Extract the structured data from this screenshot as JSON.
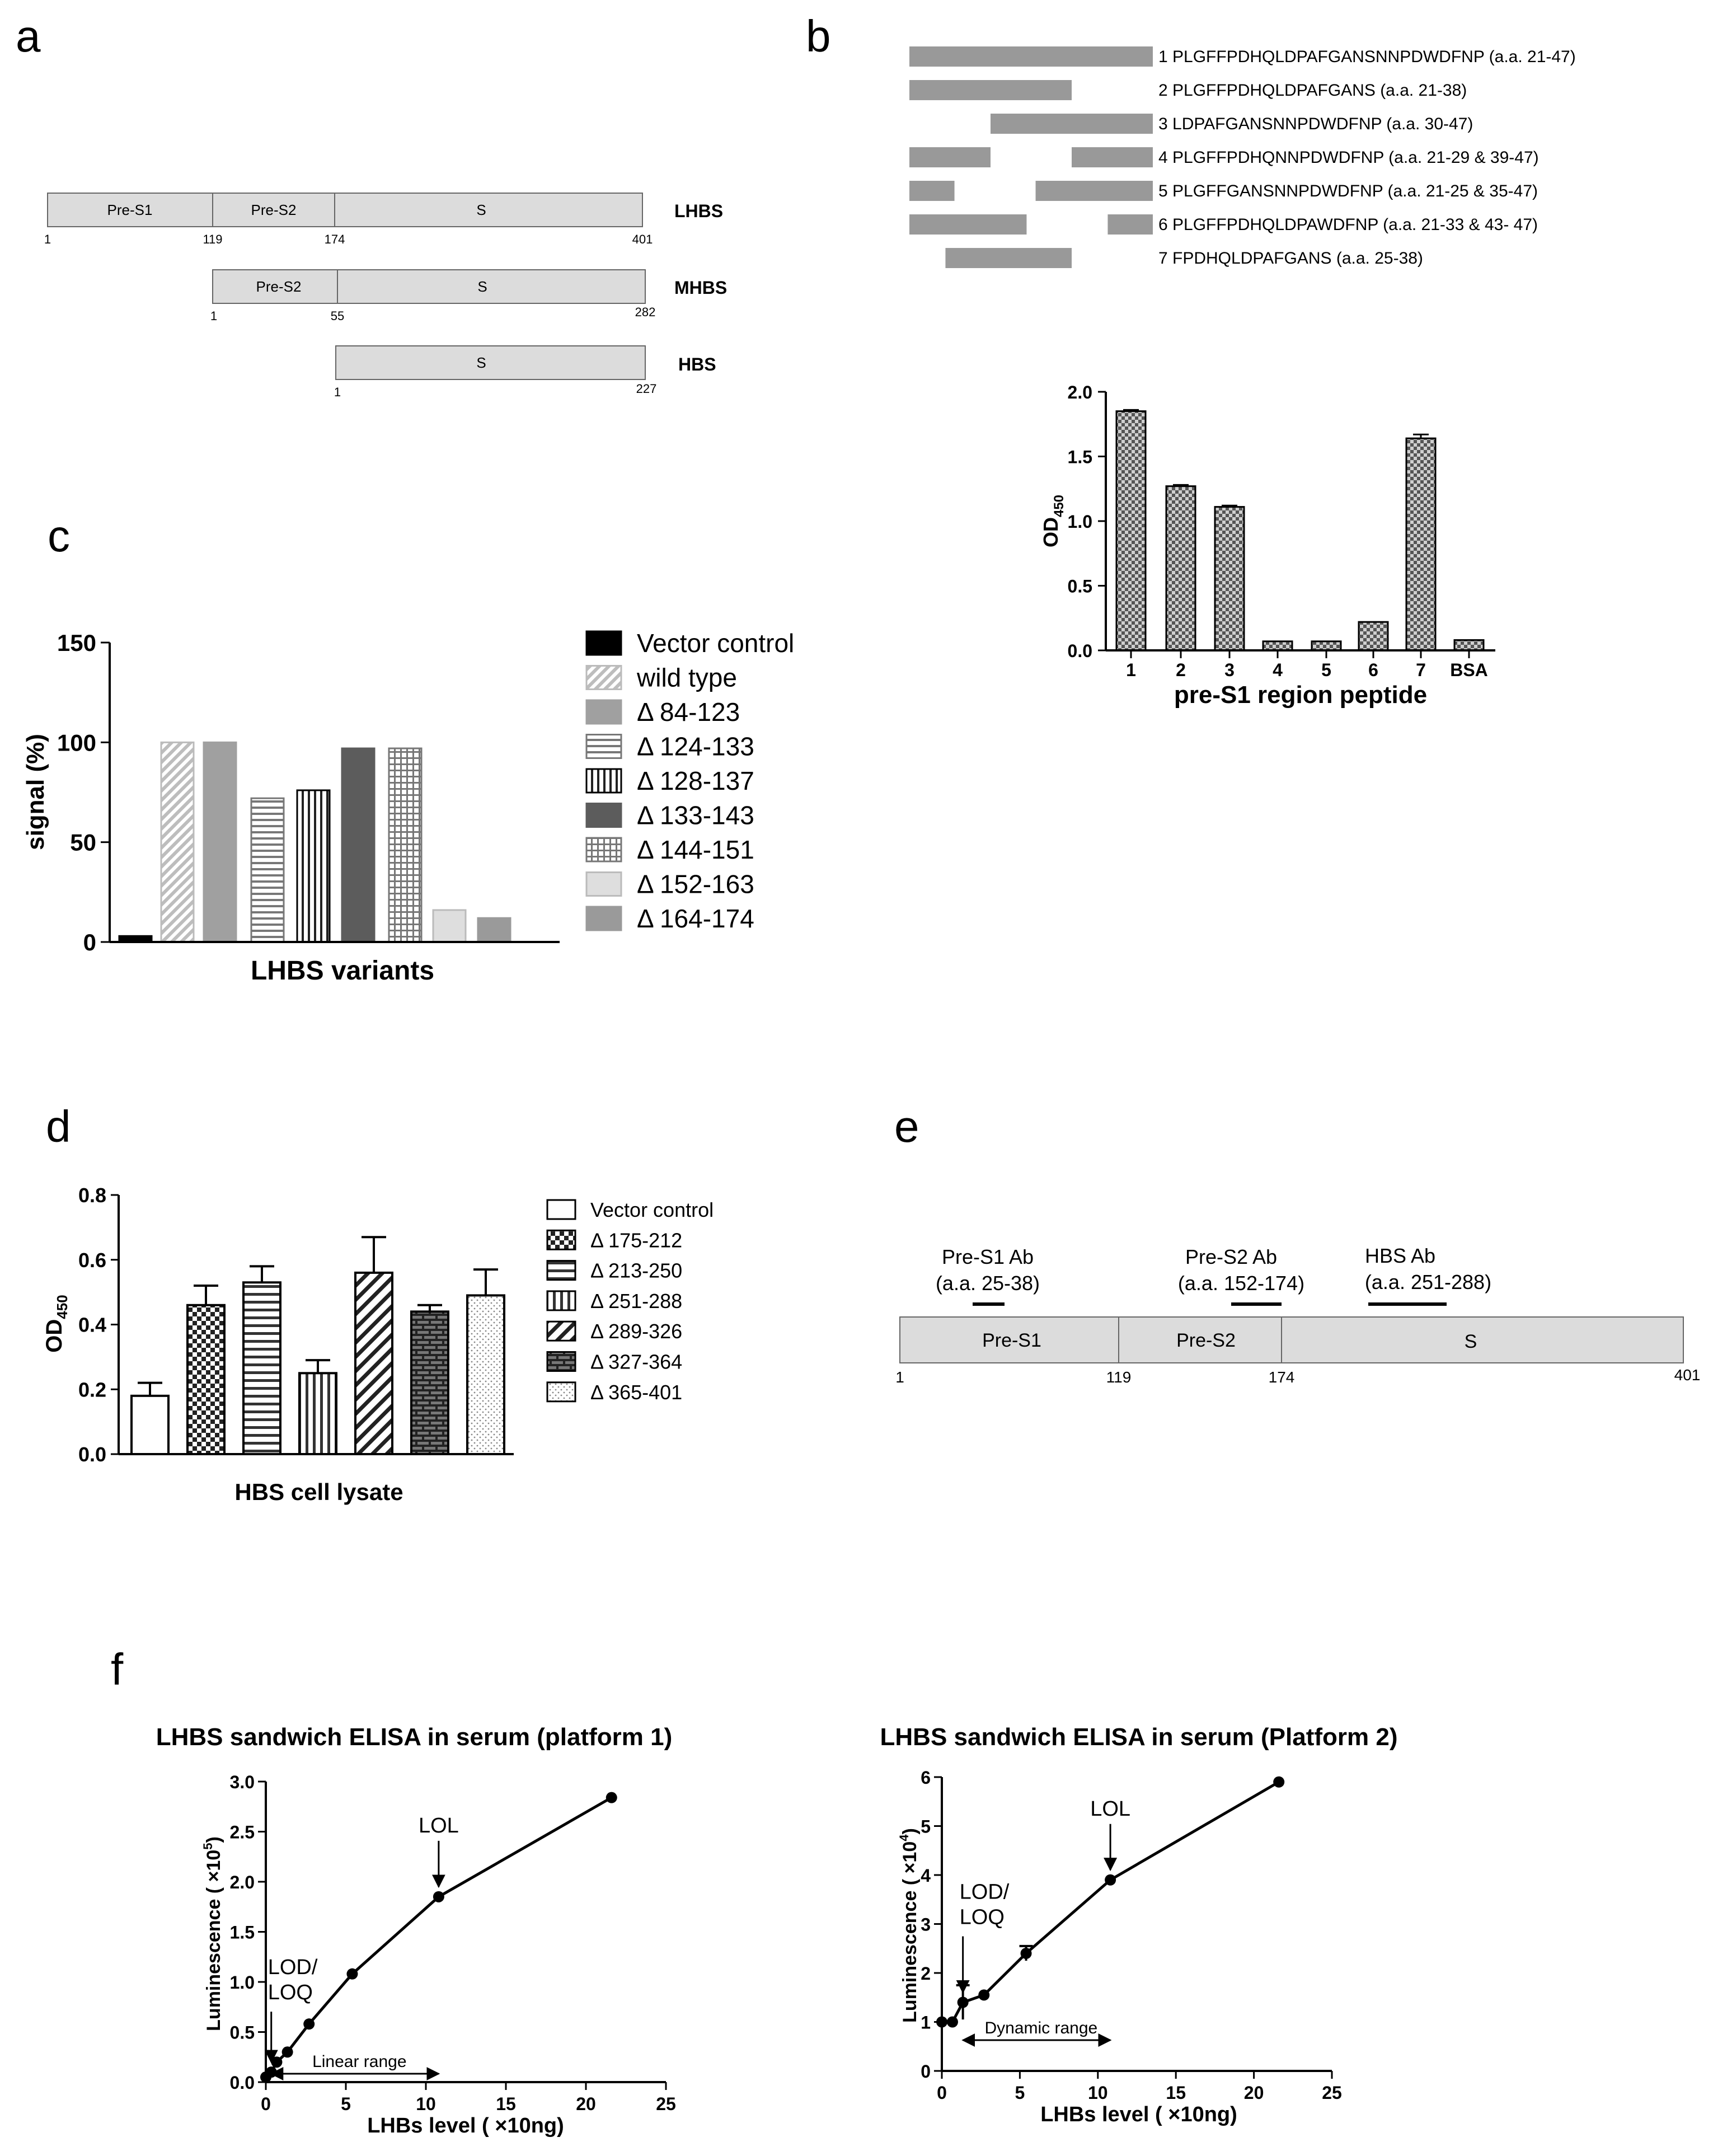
{
  "panels": {
    "a": {
      "letter": "a",
      "proteins": [
        {
          "name": "LHBS",
          "segments": [
            "Pre-S1",
            "Pre-S2",
            "S"
          ],
          "positions": [
            "1",
            "119",
            "174",
            "401"
          ]
        },
        {
          "name": "MHBS",
          "segments": [
            "Pre-S2",
            "S"
          ],
          "positions": [
            "1",
            "55",
            "282"
          ]
        },
        {
          "name": "HBS",
          "segments": [
            "S"
          ],
          "positions": [
            "1",
            "227"
          ]
        }
      ]
    },
    "b": {
      "letter": "b",
      "peptides": [
        {
          "label": "1 PLGFFPDHQLDPAFGANSNNPDWDFNP (a.a. 21-47)",
          "ranges": [
            [
              21,
              47
            ]
          ]
        },
        {
          "label": "2 PLGFFPDHQLDPAFGANS (a.a. 21-38)",
          "ranges": [
            [
              21,
              38
            ]
          ]
        },
        {
          "label": "3 LDPAFGANSNNPDWDFNP (a.a. 30-47)",
          "ranges": [
            [
              30,
              47
            ]
          ]
        },
        {
          "label": "4 PLGFFPDHQNNPDWDFNP (a.a. 21-29 & 39-47)",
          "ranges": [
            [
              21,
              29
            ],
            [
              39,
              47
            ]
          ]
        },
        {
          "label": "5 PLGFFGANSNNPDWDFNP (a.a. 21-25 & 35-47)",
          "ranges": [
            [
              21,
              25
            ],
            [
              35,
              47
            ]
          ]
        },
        {
          "label": "6 PLGFFPDHQLDPAWDFNP (a.a. 21-33 & 43- 47)",
          "ranges": [
            [
              21,
              33
            ],
            [
              43,
              47
            ]
          ]
        },
        {
          "label": "7 FPDHQLDPAFGANS (a.a. 25-38)",
          "ranges": [
            [
              25,
              38
            ]
          ]
        }
      ]
    },
    "c": {
      "letter": "c"
    },
    "d": {
      "letter": "d"
    },
    "e": {
      "letter": "e",
      "segments": [
        "Pre-S1",
        "Pre-S2",
        "S"
      ],
      "positions": [
        "1",
        "119",
        "174",
        "401"
      ],
      "antibodies": [
        {
          "name": "Pre-S1 Ab",
          "range_text": "(a.a. 25-38)",
          "range": [
            25,
            38
          ]
        },
        {
          "name": "Pre-S2 Ab",
          "range_text": "(a.a. 152-174)",
          "range": [
            152,
            174
          ]
        },
        {
          "name": "HBS Ab",
          "range_text": "(a.a. 251-288)",
          "range": [
            251,
            288
          ]
        }
      ]
    },
    "f": {
      "letter": "f"
    }
  },
  "chart_data": [
    {
      "id": "b",
      "type": "bar",
      "categories": [
        "1",
        "2",
        "3",
        "4",
        "5",
        "6",
        "7",
        "BSA"
      ],
      "values": [
        1.85,
        1.27,
        1.11,
        0.07,
        0.07,
        0.22,
        1.64,
        0.08
      ],
      "errors": [
        0.01,
        0.01,
        0.01,
        0.0,
        0.0,
        0.0,
        0.03,
        0.0
      ],
      "yticks": [
        "0.0",
        "0.5",
        "1.0",
        "1.5",
        "2.0"
      ],
      "ylim": [
        0,
        2.0
      ],
      "ylabel_main": "OD",
      "ylabel_sub": "450",
      "xlabel": "pre-S1 region peptide"
    },
    {
      "id": "c",
      "type": "bar",
      "categories": [
        "Vector control",
        "wild type",
        "Δ 84-123",
        "Δ 124-133",
        "Δ 128-137",
        "Δ 133-143",
        "Δ 144-151",
        "Δ 152-163",
        "Δ 164-174"
      ],
      "values": [
        3,
        100,
        100,
        72,
        76,
        97,
        97,
        16,
        12
      ],
      "legend": [
        "Vector control",
        "wild type",
        "Δ 84-123",
        "Δ 124-133",
        "Δ 128-137",
        "Δ 133-143",
        "Δ 144-151",
        "Δ 152-163",
        "Δ 164-174"
      ],
      "yticks": [
        "0",
        "50",
        "100",
        "150"
      ],
      "ylim": [
        0,
        150
      ],
      "ylabel": "signal (%)",
      "xlabel": "LHBS variants"
    },
    {
      "id": "d",
      "type": "bar",
      "categories": [
        "Vector control",
        "Δ 175-212",
        "Δ 213-250",
        "Δ 251-288",
        "Δ 289-326",
        "Δ 327-364",
        "Δ 365-401"
      ],
      "values": [
        0.18,
        0.46,
        0.53,
        0.25,
        0.56,
        0.44,
        0.49
      ],
      "errors": [
        0.04,
        0.06,
        0.05,
        0.04,
        0.11,
        0.02,
        0.08
      ],
      "legend": [
        "Vector control",
        "Δ 175-212",
        "Δ 213-250",
        "Δ 251-288",
        "Δ 289-326",
        "Δ 327-364",
        "Δ 365-401"
      ],
      "yticks": [
        "0.0",
        "0.2",
        "0.4",
        "0.6",
        "0.8"
      ],
      "ylim": [
        0,
        0.8
      ],
      "ylabel_main": "OD",
      "ylabel_sub": "450",
      "xlabel": "HBS cell lysate"
    },
    {
      "id": "f1",
      "type": "line",
      "title": "LHBS sandwich ELISA in serum (platform 1)",
      "x": [
        0,
        0.34,
        0.68,
        1.35,
        2.7,
        5.4,
        10.8,
        21.6
      ],
      "y": [
        0.05,
        0.1,
        0.2,
        0.3,
        0.58,
        1.08,
        1.85,
        2.84
      ],
      "xticks": [
        "0",
        "5",
        "10",
        "15",
        "20",
        "25"
      ],
      "yticks": [
        "0.0",
        "0.5",
        "1.0",
        "1.5",
        "2.0",
        "2.5",
        "3.0"
      ],
      "xlim": [
        0,
        25
      ],
      "ylim": [
        0,
        3.0
      ],
      "xlabel": "LHBs level ( ×10ng)",
      "ylabel": "Luminescence ( ×10",
      "ylabel_exp": "5",
      "ylabel_end": ")",
      "annotations": {
        "lol": {
          "text": "LOL",
          "x": 10.8
        },
        "lod": {
          "line1": "LOD/",
          "line2": "LOQ",
          "x": 0.34
        },
        "range": {
          "text": "Linear range",
          "from": 0.34,
          "to": 10.8
        }
      }
    },
    {
      "id": "f2",
      "type": "line",
      "title": "LHBS sandwich ELISA in serum (Platform 2)",
      "x": [
        0,
        0.68,
        1.35,
        2.7,
        5.4,
        10.8,
        21.6
      ],
      "y": [
        1.0,
        1.0,
        1.4,
        1.55,
        2.4,
        3.9,
        5.9
      ],
      "errors": [
        0.05,
        0.05,
        0.35,
        0.05,
        0.15,
        0.05,
        0.05
      ],
      "xticks": [
        "0",
        "5",
        "10",
        "15",
        "20",
        "25"
      ],
      "yticks": [
        "0",
        "1",
        "2",
        "3",
        "4",
        "5",
        "6"
      ],
      "xlim": [
        0,
        25
      ],
      "ylim": [
        0,
        6
      ],
      "xlabel": "LHBs level ( ×10ng)",
      "ylabel": "Luminescence ( ×10",
      "ylabel_exp": "4",
      "ylabel_end": ")",
      "annotations": {
        "lol": {
          "text": "LOL",
          "x": 10.8
        },
        "lod": {
          "line1": "LOD/",
          "line2": "LOQ",
          "x": 1.35
        },
        "range": {
          "text": "Dynamic range",
          "from": 1.35,
          "to": 10.8
        }
      }
    }
  ]
}
